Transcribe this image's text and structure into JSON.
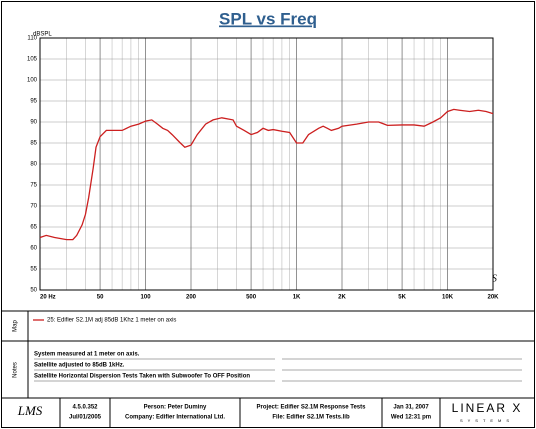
{
  "chart_data": {
    "type": "line",
    "title": "SPL vs Freq",
    "y_label": "dBSPL",
    "xscale": "log",
    "grid": true,
    "x": [
      20,
      22,
      25,
      30,
      33,
      35,
      38,
      40,
      42,
      45,
      47,
      50,
      55,
      60,
      70,
      80,
      90,
      100,
      110,
      120,
      130,
      140,
      150,
      170,
      182,
      200,
      220,
      250,
      280,
      320,
      380,
      400,
      450,
      500,
      550,
      600,
      650,
      700,
      800,
      900,
      1000,
      1100,
      1200,
      1400,
      1500,
      1600,
      1700,
      1900,
      2000,
      2500,
      3000,
      3500,
      4000,
      5000,
      6000,
      7000,
      8000,
      9000,
      10000,
      11000,
      12000,
      14000,
      16000,
      18000,
      20000
    ],
    "series": [
      {
        "name": "25: Edifier S2.1M adj 85dB 1Khz 1 meter on axis",
        "color": "#cc1f1f",
        "values": [
          62.5,
          63,
          62.5,
          62,
          62,
          63,
          65.5,
          68,
          72,
          79,
          84,
          86.5,
          88,
          88,
          88,
          89,
          89.5,
          90.2,
          90.5,
          89.5,
          88.5,
          88,
          87,
          85,
          84,
          84.5,
          87,
          89.5,
          90.5,
          91,
          90.5,
          89,
          88,
          87,
          87.5,
          88.5,
          88,
          88.2,
          87.8,
          87.5,
          85,
          85,
          87,
          88.5,
          89,
          88.5,
          88,
          88.5,
          89,
          89.5,
          90,
          90,
          89.2,
          89.3,
          89.3,
          89,
          90,
          91,
          92.5,
          93,
          92.8,
          92.5,
          92.8,
          92.5,
          92
        ]
      }
    ],
    "xlim": [
      20,
      20000
    ],
    "xticks": [
      {
        "value": 20,
        "label": "20 Hz"
      },
      50,
      100,
      200,
      500,
      {
        "value": 1000,
        "label": "1K"
      },
      {
        "value": 2000,
        "label": "2K"
      },
      {
        "value": 5000,
        "label": "5K"
      },
      {
        "value": 10000,
        "label": "10K"
      },
      {
        "value": 20000,
        "label": "20K"
      }
    ],
    "x_minor_grid": [
      30,
      40,
      60,
      70,
      80,
      90,
      300,
      400,
      600,
      700,
      800,
      900,
      3000,
      4000,
      6000,
      7000,
      8000,
      9000
    ],
    "ylim": [
      50,
      110
    ],
    "yticks": [
      50,
      55,
      60,
      65,
      70,
      75,
      80,
      85,
      90,
      95,
      100,
      105,
      110
    ],
    "plot_logo": "LMS"
  },
  "map_panel": {
    "label": "Map"
  },
  "notes_panel": {
    "label": "Notes",
    "lines": [
      "System measured at 1 meter on axis.",
      "Satellite adjusted to 85dB 1kHz.",
      "Satellite Horizontal Dispersion Tests Taken with Subwoofer To OFF Position"
    ]
  },
  "footer": {
    "logo": "LMS",
    "version": "4.5.0.352",
    "version_date": "Jul/01/2005",
    "person": "Person: Peter Duminy",
    "company": "Company: Edifier International Ltd.",
    "project": "Project: Edifier S2.1M Response Tests",
    "file": "File: Edifier S2.1M Tests.lib",
    "date": "Jan 31, 2007",
    "time": "Wed 12:31 pm",
    "brand": "LINEAR X",
    "brand_sub": "SYSTEMS"
  }
}
